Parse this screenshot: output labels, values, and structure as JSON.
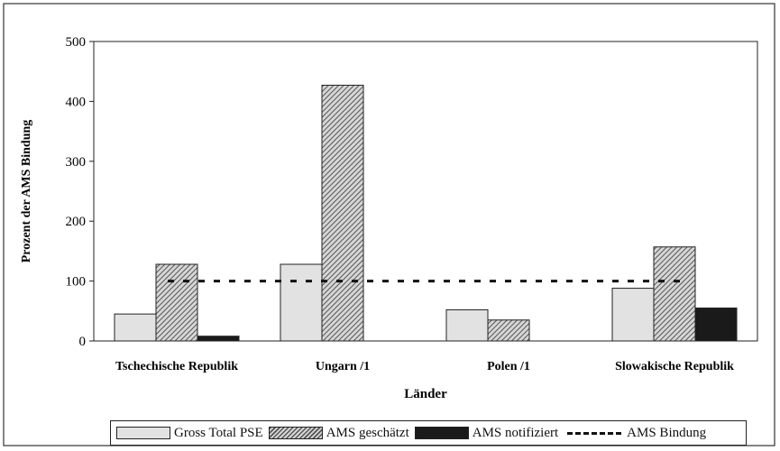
{
  "chart_data": {
    "type": "bar",
    "xlabel": "Länder",
    "ylabel": "Prozent der AMS Bindung",
    "ylim": [
      0,
      500
    ],
    "yticks": [
      0,
      100,
      200,
      300,
      400,
      500
    ],
    "grid": false,
    "legend_position": "bottom",
    "categories": [
      "Tschechische Republik",
      "Ungarn /1",
      "Polen /1",
      "Slowakische Republik"
    ],
    "series": [
      {
        "name": "Gross Total PSE",
        "style": "light",
        "values": [
          45,
          128,
          52,
          88
        ]
      },
      {
        "name": "AMS geschätzt",
        "style": "hatched",
        "values": [
          128,
          427,
          35,
          157
        ]
      },
      {
        "name": "AMS notifiziert",
        "style": "dark",
        "values": [
          8,
          null,
          null,
          55
        ]
      }
    ],
    "reference_line": {
      "name": "AMS Bindung",
      "value": 100,
      "style": "dashed"
    }
  },
  "colors": {
    "light": "#e2e2e2",
    "dark": "#1a1a1a",
    "hatch_line": "#555555",
    "hatch_bg": "#d6d6d6"
  }
}
